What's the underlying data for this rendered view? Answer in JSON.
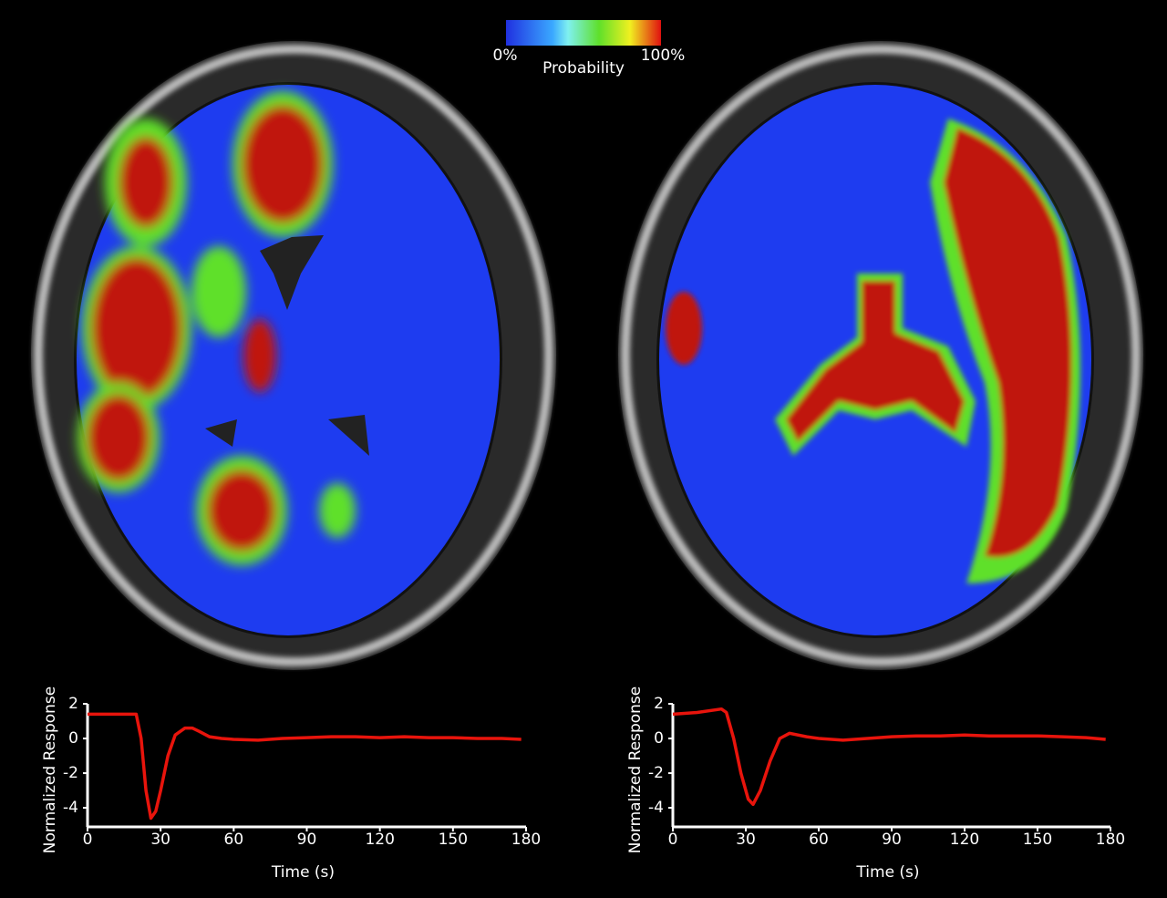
{
  "colorbar": {
    "min_label": "0%",
    "title": "Probability",
    "max_label": "100%"
  },
  "chart_data": [
    {
      "type": "line",
      "xlabel": "Time (s)",
      "ylabel": "Normalized Response",
      "color": "#e8140c",
      "x": [
        0,
        5,
        10,
        15,
        20,
        22,
        24,
        26,
        28,
        30,
        33,
        36,
        40,
        43,
        46,
        50,
        55,
        60,
        70,
        80,
        90,
        100,
        110,
        120,
        130,
        140,
        150,
        160,
        170,
        178
      ],
      "values": [
        1.4,
        1.4,
        1.4,
        1.4,
        1.4,
        0,
        -3,
        -4.6,
        -4.2,
        -3,
        -1,
        0.2,
        0.6,
        0.6,
        0.4,
        0.1,
        0,
        -0.05,
        -0.1,
        0,
        0.05,
        0.1,
        0.1,
        0.05,
        0.1,
        0.05,
        0.05,
        0,
        0,
        -0.05
      ],
      "xlim": [
        0,
        180
      ],
      "xticks": [
        0,
        30,
        60,
        90,
        120,
        150,
        180
      ],
      "ylim": [
        -5.1,
        2
      ],
      "yticks": [
        -4,
        -2,
        0,
        2
      ]
    },
    {
      "type": "line",
      "xlabel": "Time (s)",
      "ylabel": "Normalized Response",
      "color": "#e8140c",
      "x": [
        0,
        10,
        20,
        22,
        25,
        28,
        31,
        33,
        36,
        40,
        44,
        48,
        55,
        60,
        70,
        80,
        90,
        100,
        110,
        120,
        130,
        140,
        150,
        160,
        170,
        178
      ],
      "values": [
        1.4,
        1.5,
        1.7,
        1.5,
        0,
        -2,
        -3.5,
        -3.8,
        -3,
        -1.3,
        0,
        0.3,
        0.1,
        0,
        -0.1,
        0,
        0.1,
        0.15,
        0.15,
        0.2,
        0.15,
        0.15,
        0.15,
        0.1,
        0.05,
        -0.05
      ],
      "xlim": [
        0,
        180
      ],
      "xticks": [
        0,
        30,
        60,
        90,
        120,
        150,
        180
      ],
      "ylim": [
        -5.1,
        2
      ],
      "yticks": [
        -4,
        -2,
        0,
        2
      ]
    }
  ]
}
